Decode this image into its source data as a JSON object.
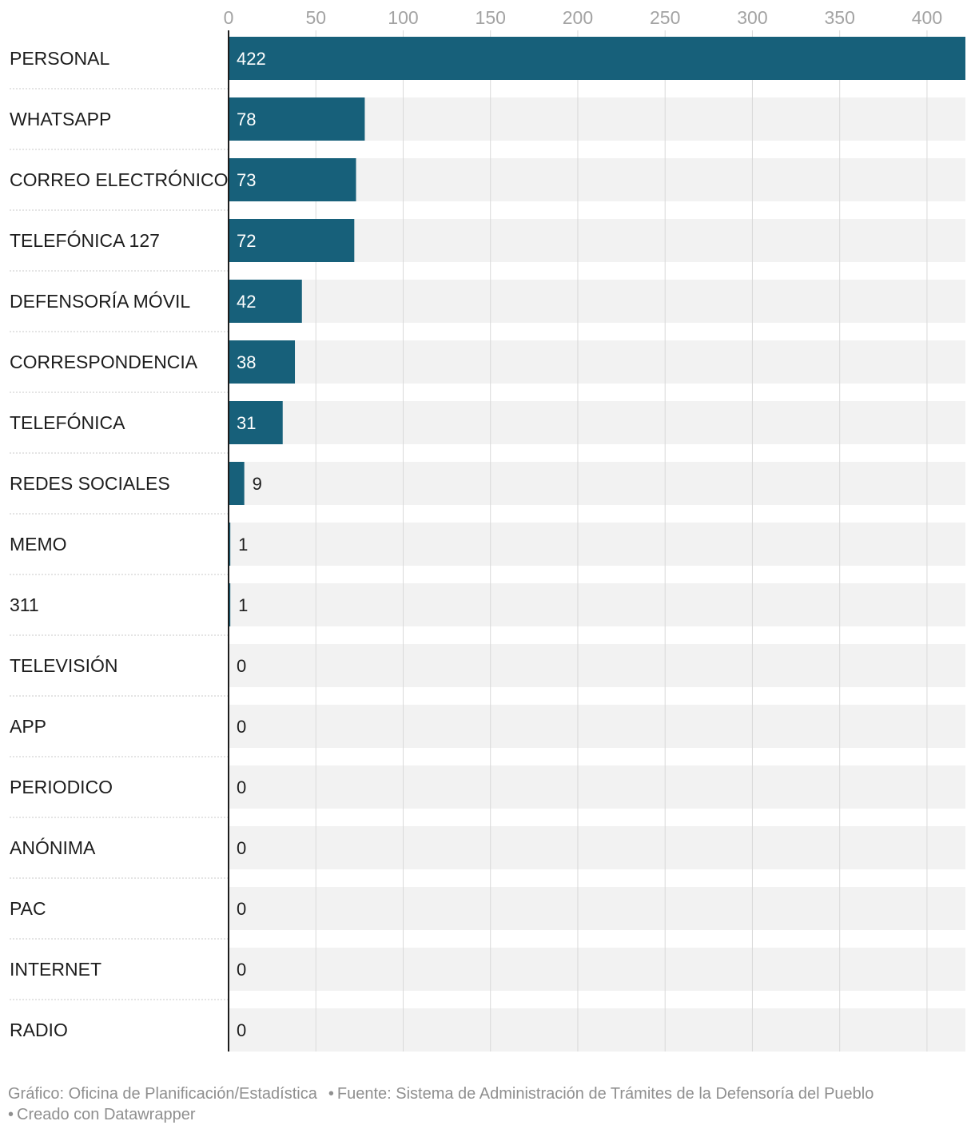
{
  "chart_data": {
    "type": "bar",
    "orientation": "horizontal",
    "categories": [
      "PERSONAL",
      "WHATSAPP",
      "CORREO ELECTRÓNICO",
      "TELEFÓNICA 127",
      "DEFENSORÍA MÓVIL",
      "CORRESPONDENCIA",
      "TELEFÓNICA",
      "REDES SOCIALES",
      "MEMO",
      "311",
      "TELEVISIÓN",
      "APP",
      "PERIODICO",
      "ANÓNIMA",
      "PAC",
      "INTERNET",
      "RADIO"
    ],
    "values": [
      422,
      78,
      73,
      72,
      42,
      38,
      31,
      9,
      1,
      1,
      0,
      0,
      0,
      0,
      0,
      0,
      0
    ],
    "xlim": [
      0,
      422
    ],
    "ticks": [
      0,
      50,
      100,
      150,
      200,
      250,
      300,
      350,
      400
    ],
    "tick_position": "top",
    "grid": true,
    "colors": {
      "bar": "#17607a",
      "track": "#f2f2f2",
      "grid": "#d9d9d9",
      "inside_label": "#ffffff",
      "outside_label": "#1d1d1d"
    }
  },
  "footer": {
    "credit": "Gráfico: Oficina de Planificación/Estadística",
    "source": "Fuente: Sistema de Administración de Trámites de la Defensoría del Pueblo",
    "tool": "Creado con Datawrapper",
    "separator": "•"
  }
}
